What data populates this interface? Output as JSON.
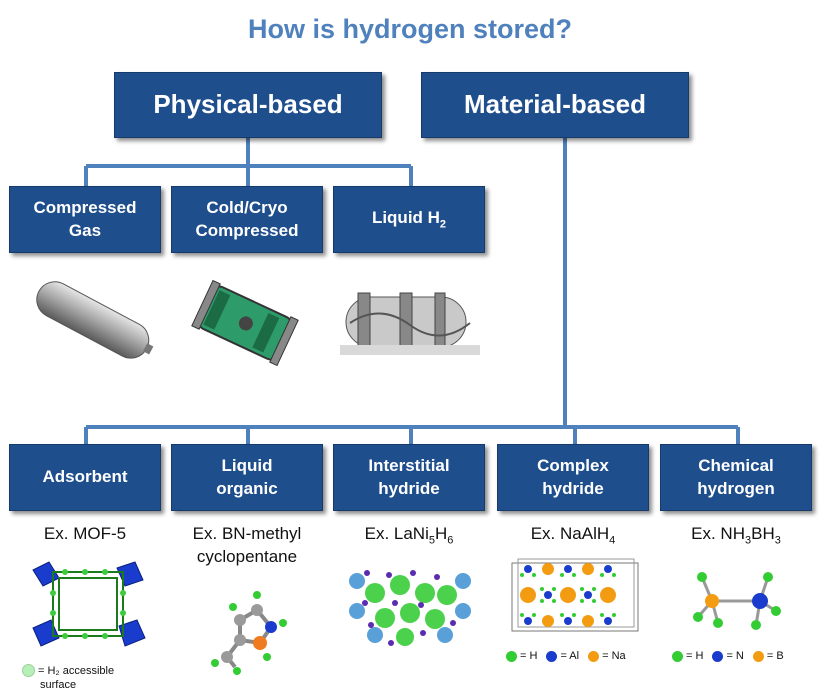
{
  "title": "How is hydrogen stored?",
  "top_categories": [
    {
      "label": "Physical-based"
    },
    {
      "label": "Material-based"
    }
  ],
  "physical": [
    {
      "label_line1": "Compressed",
      "label_line2": "Gas"
    },
    {
      "label_line1": "Cold/Cryo",
      "label_line2": "Compressed"
    },
    {
      "label_main": "Liquid H",
      "label_sub": "2"
    }
  ],
  "material": [
    {
      "label_line1": "Adsorbent",
      "example_line1": "Ex. MOF-5",
      "legend": "= H₂ accessible",
      "legend2": "surface"
    },
    {
      "label_line1": "Liquid",
      "label_line2": "organic",
      "example_line1": "Ex. BN-methyl",
      "example_line2": "cyclopentane"
    },
    {
      "label_line1": "Interstitial",
      "label_line2": "hydride",
      "example_prefix": "Ex. LaNi",
      "example_sub1": "5",
      "example_mid": "H",
      "example_sub2": "6"
    },
    {
      "label_line1": "Complex",
      "label_line2": "hydride",
      "example_prefix": "Ex. NaAlH",
      "example_sub1": "4",
      "legend_items": [
        "= H",
        "= Al",
        "= Na"
      ]
    },
    {
      "label_line1": "Chemical",
      "label_line2": "hydrogen",
      "example_prefix": "Ex. NH",
      "example_sub1": "3",
      "example_mid": "BH",
      "example_sub2": "3",
      "legend_items": [
        "= H",
        "= N",
        "= B"
      ]
    }
  ],
  "colors": {
    "box": "#1f4e8c",
    "title": "#4f81bd",
    "line": "#4f81bd",
    "hydrogen": "#33cc33",
    "aluminum": "#1a3ccc",
    "sodium": "#f39c12",
    "nitrogen": "#1a3ccc",
    "boron": "#f39c12"
  }
}
